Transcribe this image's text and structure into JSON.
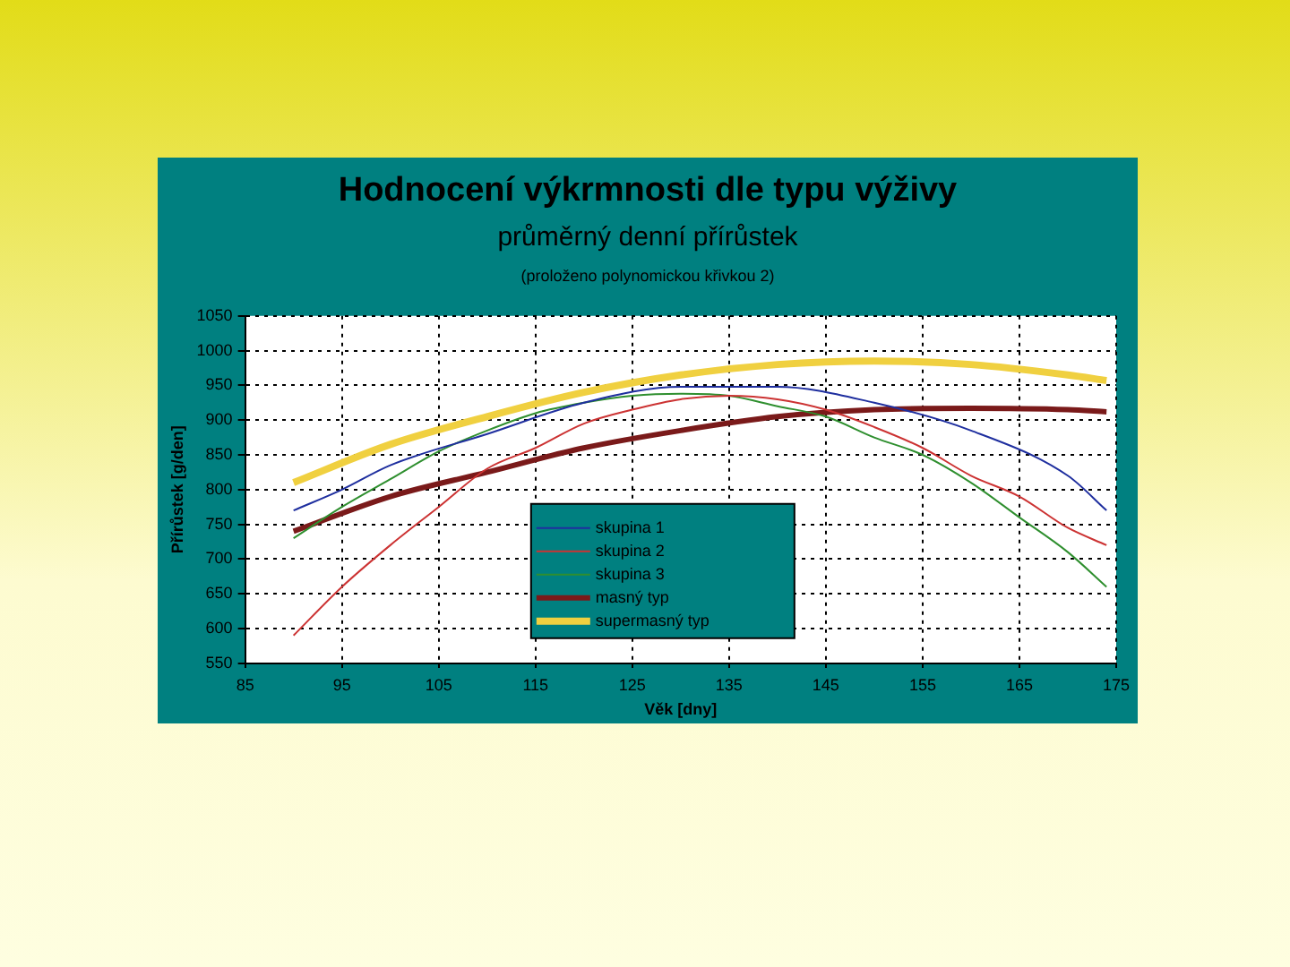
{
  "chart_data": {
    "type": "line",
    "title": "Hodnocení výkrmnosti dle typu výživy",
    "subtitle": "průměrný denní přírůstek",
    "annotations": [
      "(proloženo polynomickou křivkou 2)"
    ],
    "xlabel": "Věk [dny]",
    "ylabel": "Přírůstek [g/den]",
    "xlim": [
      85,
      175
    ],
    "xticks": [
      85,
      95,
      105,
      115,
      125,
      135,
      145,
      155,
      165,
      175
    ],
    "ylim": [
      550,
      1050
    ],
    "yticks": [
      550,
      600,
      650,
      700,
      750,
      800,
      850,
      900,
      950,
      1000,
      1050
    ],
    "grid": true,
    "legend": "bottom",
    "marker": "none",
    "line_style": "solid",
    "series": [
      {
        "name": "skupina 1",
        "color": "#1f2f9f",
        "x": [
          90,
          95,
          100,
          110,
          120,
          130,
          140,
          150,
          160,
          170,
          174
        ],
        "values": [
          770,
          800,
          835,
          880,
          925,
          948,
          948,
          925,
          885,
          820,
          770
        ]
      },
      {
        "name": "skupina 2",
        "color": "#cc3333",
        "x": [
          90,
          95,
          100,
          105,
          110,
          115,
          120,
          125,
          130,
          135,
          140,
          145,
          150,
          155,
          160,
          165,
          170,
          174
        ],
        "values": [
          590,
          660,
          720,
          775,
          830,
          860,
          895,
          915,
          930,
          935,
          930,
          915,
          890,
          860,
          820,
          790,
          745,
          720
        ]
      },
      {
        "name": "skupina 3",
        "color": "#2f8f2f",
        "x": [
          90,
          95,
          100,
          105,
          110,
          115,
          120,
          125,
          130,
          135,
          140,
          145,
          150,
          155,
          160,
          165,
          170,
          174
        ],
        "values": [
          730,
          775,
          815,
          855,
          885,
          910,
          925,
          935,
          938,
          935,
          920,
          905,
          875,
          850,
          810,
          760,
          710,
          660
        ]
      },
      {
        "name": "masný typ",
        "color": "#7a1a1a",
        "x": [
          90,
          100,
          110,
          120,
          130,
          140,
          150,
          160,
          170,
          174
        ],
        "values": [
          740,
          790,
          825,
          860,
          885,
          905,
          915,
          917,
          915,
          912
        ]
      },
      {
        "name": "supermasný typ",
        "color": "#f0d040",
        "x": [
          90,
          100,
          110,
          120,
          130,
          140,
          150,
          160,
          170,
          174
        ],
        "values": [
          810,
          865,
          905,
          940,
          965,
          980,
          985,
          980,
          965,
          957
        ]
      }
    ]
  }
}
